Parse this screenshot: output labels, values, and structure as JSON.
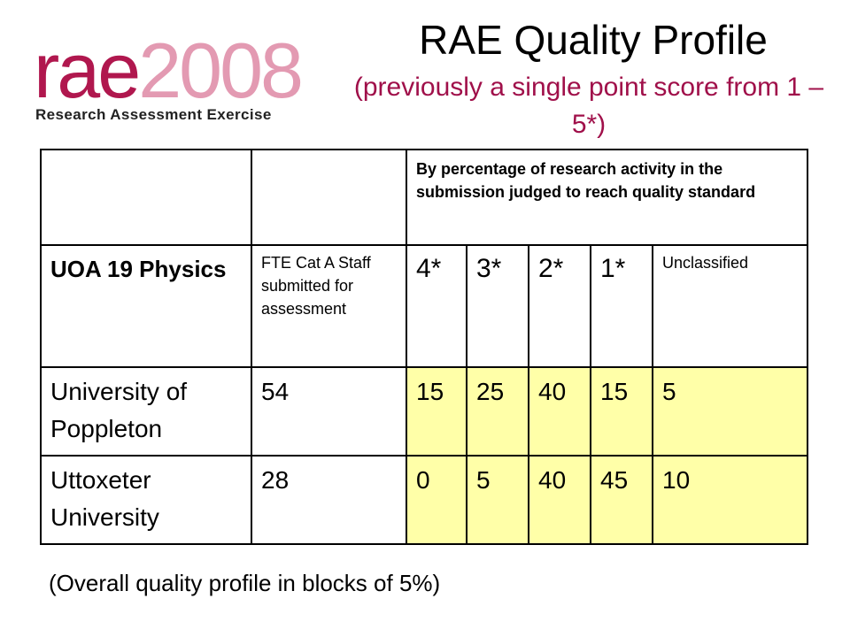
{
  "logo": {
    "word": "rae",
    "year": "2008",
    "subtitle": "Research Assessment Exercise"
  },
  "title": "RAE Quality Profile",
  "subtitle": "(previously a single point score from 1 – 5*)",
  "table": {
    "header_text": "By percentage of research activity in the submission judged to reach quality standard",
    "uoa_label": "UOA 19 Physics",
    "fte_label": "FTE Cat A Staff submitted for assessment",
    "levels": [
      "4*",
      "3*",
      "2*",
      "1*",
      "Unclassified"
    ],
    "rows": [
      {
        "institution": "University of Poppleton",
        "fte": "54",
        "values": [
          "15",
          "25",
          "40",
          "15",
          "5"
        ]
      },
      {
        "institution": "Uttoxeter University",
        "fte": "28",
        "values": [
          "0",
          "5",
          "40",
          "45",
          "10"
        ]
      }
    ]
  },
  "footnote": "(Overall quality profile in blocks of 5%)",
  "colors": {
    "brand": "#b0174e",
    "brand_light": "#e39ab2",
    "subtitle": "#a0104a",
    "highlight": "#ffffa8"
  }
}
